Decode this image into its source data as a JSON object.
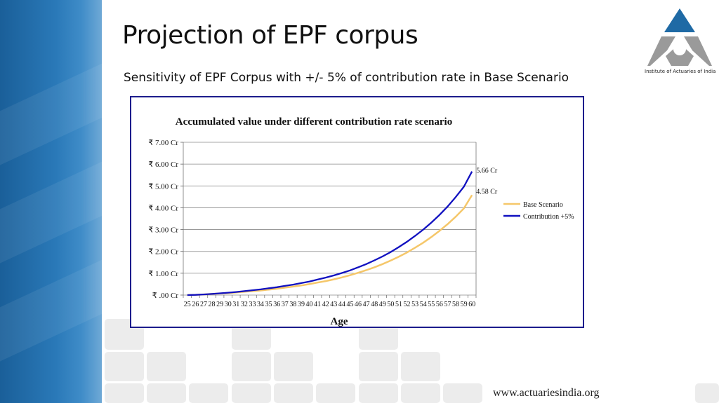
{
  "slide": {
    "title": "Projection of EPF corpus",
    "subtitle": "Sensitivity of EPF Corpus with +/- 5% of contribution rate in Base Scenario",
    "logo_text": "Institute of Actuaries of India",
    "footer_url": "www.actuariesindia.org"
  },
  "colors": {
    "base_series": "#f5c76a",
    "plus5_series": "#1010c0",
    "chart_border": "#1c1c8c",
    "logo_top": "#1f6aa5",
    "logo_bottom": "#9a9a9a"
  },
  "chart_data": {
    "type": "line",
    "title": "Accumulated value under different contribution rate scenario",
    "xlabel": "Age",
    "ylabel": "",
    "ylim": [
      0,
      7
    ],
    "yticks": [
      "₹ .00 Cr",
      "₹ 1.00 Cr",
      "₹ 2.00 Cr",
      "₹ 3.00 Cr",
      "₹ 4.00 Cr",
      "₹ 5.00 Cr",
      "₹ 6.00 Cr",
      "₹ 7.00 Cr"
    ],
    "grid": true,
    "legend": "right",
    "x": [
      25,
      26,
      27,
      28,
      29,
      30,
      31,
      32,
      33,
      34,
      35,
      36,
      37,
      38,
      39,
      40,
      41,
      42,
      43,
      44,
      45,
      46,
      47,
      48,
      49,
      50,
      51,
      52,
      53,
      54,
      55,
      56,
      57,
      58,
      59,
      60
    ],
    "series": [
      {
        "name": "Base Scenario",
        "values": [
          0.0,
          0.01,
          0.03,
          0.05,
          0.07,
          0.09,
          0.12,
          0.15,
          0.18,
          0.21,
          0.25,
          0.29,
          0.34,
          0.39,
          0.44,
          0.5,
          0.57,
          0.64,
          0.72,
          0.81,
          0.91,
          1.02,
          1.14,
          1.27,
          1.42,
          1.58,
          1.76,
          1.95,
          2.17,
          2.4,
          2.66,
          2.94,
          3.25,
          3.59,
          3.97,
          4.58
        ],
        "end_label": "4.58  Cr"
      },
      {
        "name": "Contribution +5%",
        "values": [
          0.0,
          0.01,
          0.03,
          0.05,
          0.08,
          0.11,
          0.14,
          0.18,
          0.22,
          0.26,
          0.31,
          0.36,
          0.42,
          0.48,
          0.55,
          0.62,
          0.71,
          0.8,
          0.9,
          1.01,
          1.13,
          1.27,
          1.42,
          1.59,
          1.77,
          1.97,
          2.2,
          2.44,
          2.71,
          3.0,
          3.32,
          3.67,
          4.06,
          4.49,
          4.96,
          5.66
        ],
        "end_label": "5.66 Cr"
      }
    ]
  }
}
